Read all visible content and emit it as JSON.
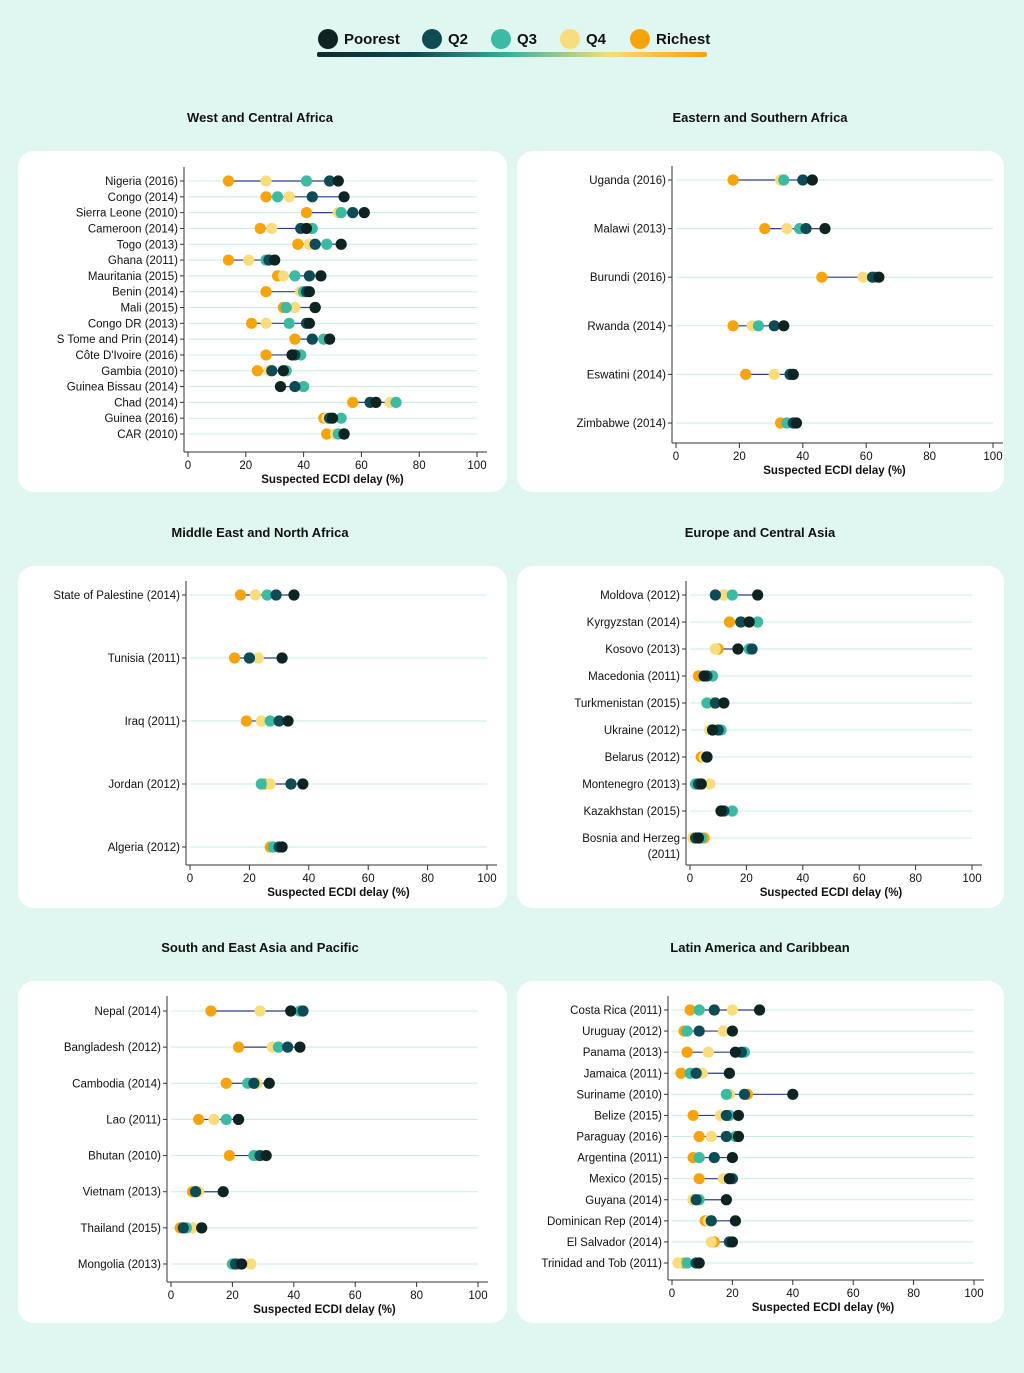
{
  "legend": {
    "items": [
      {
        "label": "Poorest",
        "color": "#0d2422"
      },
      {
        "label": "Q2",
        "color": "#0e4b55"
      },
      {
        "label": "Q3",
        "color": "#3dbaa2"
      },
      {
        "label": "Q4",
        "color": "#f9dc7c"
      },
      {
        "label": "Richest",
        "color": "#f7a30b"
      }
    ]
  },
  "chart_data": [
    {
      "type": "dot",
      "title": "West and Central Africa",
      "xlabel": "Suspected ECDI delay (%)",
      "xlim": [
        0,
        100
      ],
      "xticks": [
        "0",
        "20",
        "40",
        "60",
        "80",
        "100"
      ],
      "categories": [
        "Nigeria (2016)",
        "Congo (2014)",
        "Sierra Leone (2010)",
        "Cameroon (2014)",
        "Togo (2013)",
        "Ghana (2011)",
        "Mauritania (2015)",
        "Benin (2014)",
        "Mali (2015)",
        "Congo DR (2013)",
        "S Tome and Prin (2014)",
        "Côte D'Ivoire (2016)",
        "Gambia (2010)",
        "Guinea Bissau (2014)",
        "Chad (2014)",
        "Guinea (2016)",
        "CAR (2010)"
      ],
      "series": [
        {
          "name": "Poorest",
          "values": [
            52,
            54,
            61,
            41,
            53,
            30,
            46,
            42,
            44,
            42,
            49,
            36,
            33,
            32,
            65,
            50,
            54
          ]
        },
        {
          "name": "Q2",
          "values": [
            49,
            43,
            57,
            39,
            44,
            28,
            42,
            41,
            44,
            41,
            43,
            37,
            29,
            37,
            63,
            49,
            54
          ]
        },
        {
          "name": "Q3",
          "values": [
            41,
            31,
            53,
            43,
            48,
            27,
            37,
            40,
            34,
            35,
            47,
            39,
            34,
            40,
            72,
            53,
            52
          ]
        },
        {
          "name": "Q4",
          "values": [
            27,
            35,
            52,
            29,
            42,
            21,
            33,
            39,
            37,
            27,
            47,
            36,
            28,
            40,
            70,
            48,
            51
          ]
        },
        {
          "name": "Richest",
          "values": [
            14,
            27,
            41,
            25,
            38,
            14,
            31,
            27,
            33,
            22,
            37,
            27,
            24,
            40,
            57,
            47,
            48
          ]
        }
      ]
    },
    {
      "type": "dot",
      "title": "Eastern and Southern Africa",
      "xlabel": "Suspected ECDI delay (%)",
      "xlim": [
        0,
        100
      ],
      "xticks": [
        "0",
        "20",
        "40",
        "60",
        "80",
        "100"
      ],
      "categories": [
        "Uganda (2016)",
        "Malawi (2013)",
        "Burundi (2016)",
        "Rwanda (2014)",
        "Eswatini (2014)",
        "Zimbabwe (2014)"
      ],
      "series": [
        {
          "name": "Poorest",
          "values": [
            43,
            47,
            64,
            34,
            37,
            38
          ]
        },
        {
          "name": "Q2",
          "values": [
            40,
            41,
            62,
            31,
            36,
            37
          ]
        },
        {
          "name": "Q3",
          "values": [
            34,
            39,
            63,
            26,
            36,
            35
          ]
        },
        {
          "name": "Q4",
          "values": [
            33,
            35,
            59,
            24,
            31,
            37
          ]
        },
        {
          "name": "Richest",
          "values": [
            18,
            28,
            46,
            18,
            22,
            33
          ]
        }
      ]
    },
    {
      "type": "dot",
      "title": "Middle East and North Africa",
      "xlabel": "Suspected ECDI delay (%)",
      "xlim": [
        0,
        100
      ],
      "xticks": [
        "0",
        "20",
        "40",
        "60",
        "80",
        "100"
      ],
      "categories": [
        "State of Palestine (2014)",
        "Tunisia (2011)",
        "Iraq (2011)",
        "Jordan (2012)",
        "Algeria (2012)"
      ],
      "series": [
        {
          "name": "Poorest",
          "values": [
            35,
            31,
            33,
            38,
            31
          ]
        },
        {
          "name": "Q2",
          "values": [
            29,
            20,
            30,
            34,
            30
          ]
        },
        {
          "name": "Q3",
          "values": [
            26,
            20,
            27,
            24,
            28
          ]
        },
        {
          "name": "Q4",
          "values": [
            22,
            23,
            24,
            27,
            28
          ]
        },
        {
          "name": "Richest",
          "values": [
            17,
            15,
            19,
            25,
            27
          ]
        }
      ]
    },
    {
      "type": "dot",
      "title": "Europe and Central Asia",
      "xlabel": "Suspected ECDI delay (%)",
      "xlim": [
        0,
        100
      ],
      "xticks": [
        "0",
        "20",
        "40",
        "60",
        "80",
        "100"
      ],
      "categories": [
        "Moldova (2012)",
        "Kyrgyzstan (2014)",
        "Kosovo (2013)",
        "Macedonia (2011)",
        "Turkmenistan (2015)",
        "Ukraine (2012)",
        "Belarus (2012)",
        "Montenegro (2013)",
        "Kazakhstan (2015)",
        "Bosnia and Herzeg (2011)"
      ],
      "series": [
        {
          "name": "Poorest",
          "values": [
            24,
            21,
            17,
            5,
            12,
            8,
            6,
            4,
            11,
            3
          ]
        },
        {
          "name": "Q2",
          "values": [
            9,
            18,
            22,
            6,
            9,
            10,
            6,
            3,
            12,
            2
          ]
        },
        {
          "name": "Q3",
          "values": [
            15,
            24,
            21,
            8,
            6,
            11,
            6,
            2,
            15,
            4
          ]
        },
        {
          "name": "Q4",
          "values": [
            12,
            19,
            9,
            6,
            7,
            7,
            5,
            7,
            12,
            1
          ]
        },
        {
          "name": "Richest",
          "values": [
            12,
            14,
            10,
            3,
            8,
            8,
            4,
            2,
            11,
            5
          ]
        }
      ]
    },
    {
      "type": "dot",
      "title": "South and East Asia and Pacific",
      "xlabel": "Suspected ECDI delay (%)",
      "xlim": [
        0,
        100
      ],
      "xticks": [
        "0",
        "20",
        "40",
        "60",
        "80",
        "100"
      ],
      "categories": [
        "Nepal (2014)",
        "Bangladesh (2012)",
        "Cambodia (2014)",
        "Lao (2011)",
        "Bhutan (2010)",
        "Vietnam (2013)",
        "Thailand (2015)",
        "Mongolia (2013)"
      ],
      "series": [
        {
          "name": "Poorest",
          "values": [
            39,
            42,
            32,
            22,
            31,
            17,
            10,
            23
          ]
        },
        {
          "name": "Q2",
          "values": [
            43,
            38,
            27,
            22,
            29,
            8,
            4,
            21
          ]
        },
        {
          "name": "Q3",
          "values": [
            42,
            35,
            25,
            18,
            27,
            8,
            5,
            20
          ]
        },
        {
          "name": "Q4",
          "values": [
            29,
            33,
            28,
            14,
            28,
            9,
            7,
            26
          ]
        },
        {
          "name": "Richest",
          "values": [
            13,
            22,
            18,
            9,
            19,
            7,
            3,
            22
          ]
        }
      ]
    },
    {
      "type": "dot",
      "title": "Latin America and Caribbean",
      "xlabel": "Suspected ECDI delay (%)",
      "xlim": [
        0,
        100
      ],
      "xticks": [
        "0",
        "20",
        "40",
        "60",
        "80",
        "100"
      ],
      "categories": [
        "Costa Rica (2011)",
        "Uruguay (2012)",
        "Panama (2013)",
        "Jamaica (2011)",
        "Suriname (2010)",
        "Belize (2015)",
        "Paraguay (2016)",
        "Argentina (2011)",
        "Mexico (2015)",
        "Guyana (2014)",
        "Dominican Rep (2014)",
        "El Salvador (2014)",
        "Trinidad and Tob (2011)"
      ],
      "series": [
        {
          "name": "Poorest",
          "values": [
            29,
            20,
            21,
            19,
            40,
            22,
            22,
            20,
            19,
            18,
            21,
            20,
            9
          ]
        },
        {
          "name": "Q2",
          "values": [
            14,
            9,
            23,
            8,
            24,
            18,
            18,
            14,
            20,
            8,
            13,
            19,
            8
          ]
        },
        {
          "name": "Q3",
          "values": [
            9,
            5,
            24,
            6,
            18,
            19,
            21,
            9,
            19,
            9,
            13,
            20,
            5
          ]
        },
        {
          "name": "Q4",
          "values": [
            20,
            17,
            12,
            10,
            19,
            16,
            13,
            9,
            17,
            7,
            12,
            13,
            2
          ]
        },
        {
          "name": "Richest",
          "values": [
            6,
            4,
            5,
            3,
            25,
            7,
            9,
            7,
            9,
            7,
            11,
            14,
            4
          ]
        }
      ]
    }
  ]
}
